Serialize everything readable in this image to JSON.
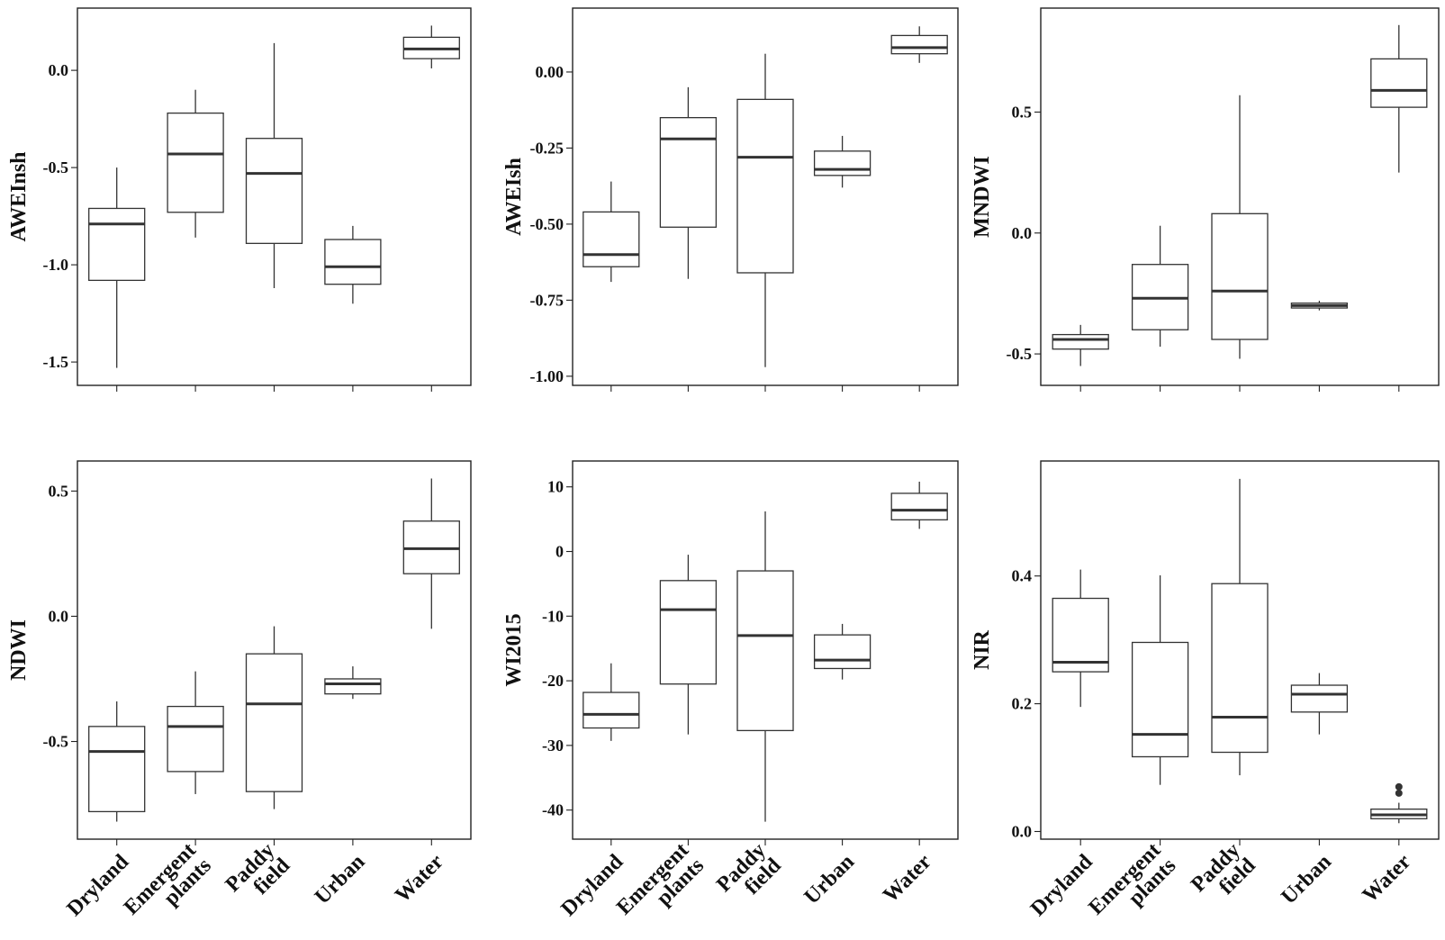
{
  "figure": {
    "categories": [
      "Dryland",
      "Emergent\nplants",
      "Paddy\nfield",
      "Urban",
      "Water"
    ]
  },
  "chart_data": [
    {
      "type": "box",
      "ylabel": "AWEInsh",
      "ylim": [
        -1.62,
        0.32
      ],
      "yticks": [
        0.0,
        -0.5,
        -1.0,
        -1.5
      ],
      "ytick_labels": [
        "0.0",
        "-0.5",
        "-1.0",
        "-1.5"
      ],
      "boxes": [
        {
          "min": -1.53,
          "q1": -1.08,
          "median": -0.79,
          "q3": -0.71,
          "max": -0.5
        },
        {
          "min": -0.86,
          "q1": -0.73,
          "median": -0.43,
          "q3": -0.22,
          "max": -0.1
        },
        {
          "min": -1.12,
          "q1": -0.89,
          "median": -0.53,
          "q3": -0.35,
          "max": 0.14
        },
        {
          "min": -1.2,
          "q1": -1.1,
          "median": -1.01,
          "q3": -0.87,
          "max": -0.8
        },
        {
          "min": 0.01,
          "q1": 0.06,
          "median": 0.11,
          "q3": 0.17,
          "max": 0.23
        }
      ]
    },
    {
      "type": "box",
      "ylabel": "AWEIsh",
      "ylim": [
        -1.03,
        0.21
      ],
      "yticks": [
        0.0,
        -0.25,
        -0.5,
        -0.75,
        -1.0
      ],
      "ytick_labels": [
        "0.00",
        "-0.25",
        "-0.50",
        "-0.75",
        "-1.00"
      ],
      "boxes": [
        {
          "min": -0.69,
          "q1": -0.64,
          "median": -0.6,
          "q3": -0.46,
          "max": -0.36
        },
        {
          "min": -0.68,
          "q1": -0.51,
          "median": -0.22,
          "q3": -0.15,
          "max": -0.05
        },
        {
          "min": -0.97,
          "q1": -0.66,
          "median": -0.28,
          "q3": -0.09,
          "max": 0.06
        },
        {
          "min": -0.38,
          "q1": -0.34,
          "median": -0.32,
          "q3": -0.26,
          "max": -0.21
        },
        {
          "min": 0.03,
          "q1": 0.06,
          "median": 0.08,
          "q3": 0.12,
          "max": 0.15
        }
      ]
    },
    {
      "type": "box",
      "ylabel": "MNDWI",
      "ylim": [
        -0.63,
        0.93
      ],
      "yticks": [
        0.5,
        0.0,
        -0.5
      ],
      "ytick_labels": [
        "0.5",
        "0.0",
        "-0.5"
      ],
      "boxes": [
        {
          "min": -0.55,
          "q1": -0.48,
          "median": -0.44,
          "q3": -0.42,
          "max": -0.38
        },
        {
          "min": -0.47,
          "q1": -0.4,
          "median": -0.27,
          "q3": -0.13,
          "max": 0.03
        },
        {
          "min": -0.52,
          "q1": -0.44,
          "median": -0.24,
          "q3": 0.08,
          "max": 0.57
        },
        {
          "min": -0.32,
          "q1": -0.31,
          "median": -0.3,
          "q3": -0.29,
          "max": -0.28
        },
        {
          "min": 0.25,
          "q1": 0.52,
          "median": 0.59,
          "q3": 0.72,
          "max": 0.86
        }
      ]
    },
    {
      "type": "box",
      "ylabel": "NDWI",
      "ylim": [
        -0.89,
        0.62
      ],
      "yticks": [
        0.5,
        0.0,
        -0.5
      ],
      "ytick_labels": [
        "0.5",
        "0.0",
        "-0.5"
      ],
      "boxes": [
        {
          "min": -0.82,
          "q1": -0.78,
          "median": -0.54,
          "q3": -0.44,
          "max": -0.34
        },
        {
          "min": -0.71,
          "q1": -0.62,
          "median": -0.44,
          "q3": -0.36,
          "max": -0.22
        },
        {
          "min": -0.77,
          "q1": -0.7,
          "median": -0.35,
          "q3": -0.15,
          "max": -0.04
        },
        {
          "min": -0.33,
          "q1": -0.31,
          "median": -0.27,
          "q3": -0.25,
          "max": -0.2
        },
        {
          "min": -0.05,
          "q1": 0.17,
          "median": 0.27,
          "q3": 0.38,
          "max": 0.55
        }
      ]
    },
    {
      "type": "box",
      "ylabel": "WI2015",
      "ylim": [
        -44.5,
        14.0
      ],
      "yticks": [
        10,
        0,
        -10,
        -20,
        -30,
        -40
      ],
      "ytick_labels": [
        "10",
        "0",
        "-10",
        "-20",
        "-30",
        "-40"
      ],
      "boxes": [
        {
          "min": -29.3,
          "q1": -27.3,
          "median": -25.2,
          "q3": -21.8,
          "max": -17.3
        },
        {
          "min": -28.3,
          "q1": -20.5,
          "median": -9.0,
          "q3": -4.5,
          "max": -0.5
        },
        {
          "min": -41.8,
          "q1": -27.7,
          "median": -13.0,
          "q3": -3.0,
          "max": 6.2
        },
        {
          "min": -19.8,
          "q1": -18.1,
          "median": -16.8,
          "q3": -12.9,
          "max": -11.2
        },
        {
          "min": 3.5,
          "q1": 4.9,
          "median": 6.4,
          "q3": 9.0,
          "max": 10.8
        }
      ]
    },
    {
      "type": "box",
      "ylabel": "NIR",
      "ylim": [
        -0.012,
        0.58
      ],
      "yticks": [
        0.4,
        0.2,
        0.0
      ],
      "ytick_labels": [
        "0.4",
        "0.2",
        "0.0"
      ],
      "boxes": [
        {
          "min": 0.195,
          "q1": 0.25,
          "median": 0.265,
          "q3": 0.365,
          "max": 0.41
        },
        {
          "min": 0.073,
          "q1": 0.117,
          "median": 0.152,
          "q3": 0.296,
          "max": 0.401
        },
        {
          "min": 0.088,
          "q1": 0.124,
          "median": 0.179,
          "q3": 0.388,
          "max": 0.552
        },
        {
          "min": 0.152,
          "q1": 0.187,
          "median": 0.215,
          "q3": 0.229,
          "max": 0.248
        },
        {
          "min": 0.013,
          "q1": 0.02,
          "median": 0.026,
          "q3": 0.035,
          "max": 0.045,
          "outliers": [
            0.06,
            0.07
          ]
        }
      ]
    }
  ]
}
